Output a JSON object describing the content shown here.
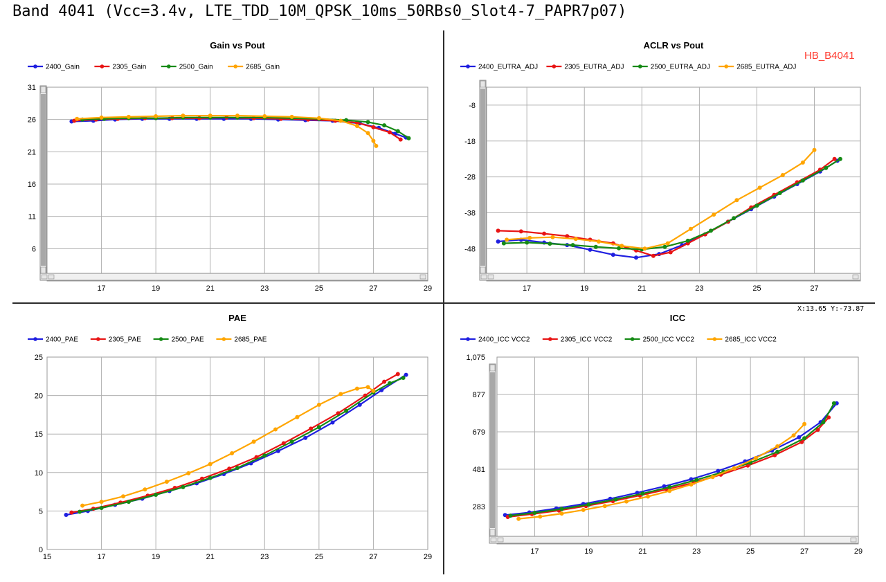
{
  "page": {
    "title": "Band 4041 (Vcc=3.4v, LTE_TDD_10M_QPSK_10ms_50RBs0_Slot4-7_PAPR7p07)",
    "annotation": "HB_B4041",
    "coord_readout": "X:13.65  Y:-73.87"
  },
  "colors": {
    "blue": "#1f1fe0",
    "red": "#e81515",
    "green": "#158a15",
    "orange": "#ffa500"
  },
  "chart_data": [
    {
      "id": "gain",
      "type": "line",
      "title": "Gain vs Pout",
      "xlim": [
        15,
        29
      ],
      "x_ticks": [
        17,
        19,
        21,
        23,
        25,
        27,
        29
      ],
      "ylim": [
        1,
        31
      ],
      "y_ticks": [
        6,
        11,
        16,
        21,
        26,
        31
      ],
      "y_tick_labels": [
        "6",
        "11",
        "16",
        "21",
        "26",
        "31"
      ],
      "x_scrollbar": true,
      "legend": [
        "2400_Gain",
        "2305_Gain",
        "2500_Gain",
        "2685_Gain"
      ],
      "series": [
        {
          "name": "2400_Gain",
          "color": "blue",
          "x": [
            15.9,
            16.7,
            17.5,
            18.5,
            19.5,
            20.5,
            21.5,
            22.5,
            23.5,
            24.5,
            25.5,
            26.5,
            27.2,
            27.8,
            28.2
          ],
          "y": [
            25.7,
            25.8,
            26.0,
            26.1,
            26.1,
            26.1,
            26.1,
            26.1,
            26.0,
            25.9,
            25.8,
            25.4,
            24.7,
            23.8,
            23.2
          ]
        },
        {
          "name": "2305_Gain",
          "color": "red",
          "x": [
            16.0,
            16.8,
            17.6,
            18.6,
            19.6,
            20.6,
            21.6,
            22.6,
            23.6,
            24.6,
            25.6,
            26.4,
            27.0,
            27.6,
            28.0
          ],
          "y": [
            25.8,
            26.0,
            26.1,
            26.2,
            26.2,
            26.2,
            26.3,
            26.2,
            26.1,
            26.0,
            25.8,
            25.5,
            24.8,
            24.0,
            22.9
          ]
        },
        {
          "name": "2500_Gain",
          "color": "green",
          "x": [
            16.3,
            17.1,
            18.0,
            19.0,
            20.0,
            21.0,
            22.0,
            23.0,
            24.0,
            25.0,
            26.0,
            26.8,
            27.4,
            27.9,
            28.3
          ],
          "y": [
            26.0,
            26.1,
            26.2,
            26.2,
            26.3,
            26.3,
            26.3,
            26.3,
            26.2,
            26.1,
            25.9,
            25.6,
            25.1,
            24.2,
            23.1
          ]
        },
        {
          "name": "2685_Gain",
          "color": "orange",
          "x": [
            16.1,
            17.0,
            18.0,
            19.0,
            20.0,
            21.0,
            22.0,
            23.0,
            24.0,
            25.0,
            25.8,
            26.4,
            26.8,
            27.0,
            27.1
          ],
          "y": [
            26.1,
            26.3,
            26.4,
            26.5,
            26.6,
            26.6,
            26.6,
            26.5,
            26.4,
            26.2,
            25.8,
            25.0,
            23.9,
            22.7,
            21.9
          ]
        }
      ]
    },
    {
      "id": "aclr",
      "type": "line",
      "title": "ACLR vs Pout",
      "xlim": [
        15.6,
        28.6
      ],
      "x_ticks": [
        17,
        19,
        21,
        23,
        25,
        27
      ],
      "ylim": [
        -57,
        -3
      ],
      "y_ticks": [
        -8,
        -18,
        -28,
        -38,
        -48
      ],
      "y_tick_labels": [
        "-8",
        "-18",
        "-28",
        "-38",
        "-48"
      ],
      "x_scrollbar": true,
      "legend": [
        "2400_EUTRA_ADJ",
        "2305_EUTRA_ADJ",
        "2500_EUTRA_ADJ",
        "2685_EUTRA_ADJ"
      ],
      "series": [
        {
          "name": "2400_EUTRA_ADJ",
          "color": "blue",
          "x": [
            16.0,
            16.8,
            17.6,
            18.4,
            19.2,
            20.0,
            20.8,
            21.6,
            22.4,
            23.2,
            24.0,
            24.8,
            25.6,
            26.4,
            27.2,
            27.8
          ],
          "y": [
            -46.0,
            -45.5,
            -46.3,
            -47.0,
            -48.3,
            -49.7,
            -50.5,
            -49.5,
            -47.0,
            -44.0,
            -40.5,
            -37.0,
            -33.5,
            -30.0,
            -26.5,
            -23.5
          ]
        },
        {
          "name": "2305_EUTRA_ADJ",
          "color": "red",
          "x": [
            16.0,
            16.8,
            17.6,
            18.4,
            19.2,
            20.0,
            20.8,
            21.4,
            22.0,
            22.6,
            23.2,
            24.0,
            24.8,
            25.6,
            26.4,
            27.2,
            27.7
          ],
          "y": [
            -43.0,
            -43.2,
            -43.8,
            -44.5,
            -45.5,
            -46.5,
            -48.5,
            -50.0,
            -49.0,
            -46.5,
            -44.0,
            -40.5,
            -36.5,
            -33.0,
            -29.5,
            -26.0,
            -23.0
          ]
        },
        {
          "name": "2500_EUTRA_ADJ",
          "color": "green",
          "x": [
            16.2,
            17.0,
            17.8,
            18.6,
            19.4,
            20.2,
            21.0,
            21.8,
            22.6,
            23.4,
            24.2,
            25.0,
            25.8,
            26.6,
            27.4,
            27.9
          ],
          "y": [
            -46.5,
            -46.3,
            -46.6,
            -47.0,
            -47.5,
            -47.9,
            -48.2,
            -47.5,
            -45.8,
            -43.0,
            -39.5,
            -36.0,
            -32.5,
            -29.0,
            -25.5,
            -23.0
          ]
        },
        {
          "name": "2685_EUTRA_ADJ",
          "color": "orange",
          "x": [
            16.3,
            17.1,
            17.9,
            18.7,
            19.5,
            20.3,
            21.1,
            21.9,
            22.7,
            23.5,
            24.3,
            25.1,
            25.9,
            26.6,
            27.0
          ],
          "y": [
            -45.5,
            -45.0,
            -44.8,
            -45.3,
            -46.0,
            -47.2,
            -48.0,
            -46.5,
            -42.5,
            -38.5,
            -34.5,
            -31.0,
            -27.5,
            -24.0,
            -20.5
          ]
        }
      ]
    },
    {
      "id": "pae",
      "type": "line",
      "title": "PAE",
      "xlim": [
        15,
        29
      ],
      "x_ticks": [
        15,
        17,
        19,
        21,
        23,
        25,
        27,
        29
      ],
      "ylim": [
        0,
        25
      ],
      "y_ticks": [
        0,
        5,
        10,
        15,
        20,
        25
      ],
      "y_tick_labels": [
        "0",
        "5",
        "10",
        "15",
        "20",
        "25"
      ],
      "x_scrollbar": false,
      "legend": [
        "2400_PAE",
        "2305_PAE",
        "2500_PAE",
        "2685_PAE"
      ],
      "series": [
        {
          "name": "2400_PAE",
          "color": "blue",
          "x": [
            15.7,
            16.5,
            17.5,
            18.5,
            19.5,
            20.5,
            21.5,
            22.5,
            23.5,
            24.5,
            25.5,
            26.5,
            27.3,
            28.2
          ],
          "y": [
            4.5,
            5.0,
            5.8,
            6.6,
            7.6,
            8.6,
            9.8,
            11.2,
            12.8,
            14.5,
            16.5,
            18.8,
            20.7,
            22.7
          ]
        },
        {
          "name": "2305_PAE",
          "color": "red",
          "x": [
            15.9,
            16.7,
            17.7,
            18.7,
            19.7,
            20.7,
            21.7,
            22.7,
            23.7,
            24.7,
            25.7,
            26.7,
            27.4,
            27.9
          ],
          "y": [
            4.8,
            5.3,
            6.1,
            7.0,
            8.0,
            9.2,
            10.5,
            12.0,
            13.8,
            15.7,
            17.7,
            20.0,
            21.8,
            22.8
          ]
        },
        {
          "name": "2500_PAE",
          "color": "green",
          "x": [
            16.2,
            17.0,
            18.0,
            19.0,
            20.0,
            21.0,
            22.0,
            23.0,
            24.0,
            25.0,
            26.0,
            27.0,
            27.6,
            28.1
          ],
          "y": [
            4.9,
            5.4,
            6.2,
            7.1,
            8.1,
            9.3,
            10.6,
            12.2,
            14.0,
            15.9,
            18.0,
            20.4,
            21.6,
            22.3
          ]
        },
        {
          "name": "2685_PAE",
          "color": "orange",
          "x": [
            16.3,
            17.0,
            17.8,
            18.6,
            19.4,
            20.2,
            21.0,
            21.8,
            22.6,
            23.4,
            24.2,
            25.0,
            25.8,
            26.4,
            26.8,
            27.0
          ],
          "y": [
            5.7,
            6.2,
            6.9,
            7.8,
            8.8,
            9.9,
            11.1,
            12.5,
            14.0,
            15.6,
            17.2,
            18.8,
            20.2,
            20.9,
            21.1,
            20.6
          ]
        }
      ]
    },
    {
      "id": "icc",
      "type": "line",
      "title": "ICC",
      "xlim": [
        15.6,
        29
      ],
      "x_ticks": [
        17,
        19,
        21,
        23,
        25,
        27,
        29
      ],
      "ylim": [
        85,
        1075
      ],
      "y_ticks": [
        283,
        481,
        679,
        877,
        1075
      ],
      "y_tick_labels": [
        "283",
        "481",
        "679",
        "877",
        "1,075"
      ],
      "x_scrollbar": true,
      "legend": [
        "2400_ICC VCC2",
        "2305_ICC VCC2",
        "2500_ICC VCC2",
        "2685_ICC VCC2"
      ],
      "series": [
        {
          "name": "2400_ICC VCC2",
          "color": "blue",
          "x": [
            15.9,
            16.8,
            17.8,
            18.8,
            19.8,
            20.8,
            21.8,
            22.8,
            23.8,
            24.8,
            25.8,
            26.8,
            27.6,
            28.2
          ],
          "y": [
            238,
            252,
            273,
            297,
            324,
            356,
            390,
            428,
            472,
            522,
            580,
            650,
            730,
            830
          ]
        },
        {
          "name": "2305_ICC VCC2",
          "color": "red",
          "x": [
            16.0,
            16.9,
            17.9,
            18.9,
            19.9,
            20.9,
            21.9,
            22.9,
            23.9,
            24.9,
            25.9,
            26.9,
            27.5,
            27.9
          ],
          "y": [
            228,
            243,
            262,
            286,
            312,
            342,
            374,
            410,
            452,
            500,
            555,
            625,
            690,
            755
          ]
        },
        {
          "name": "2500_ICC VCC2",
          "color": "green",
          "x": [
            16.1,
            17.0,
            18.0,
            19.0,
            20.0,
            21.0,
            22.0,
            23.0,
            24.0,
            25.0,
            26.0,
            27.0,
            27.7,
            28.1
          ],
          "y": [
            235,
            250,
            270,
            294,
            321,
            352,
            386,
            424,
            467,
            516,
            573,
            645,
            730,
            830
          ]
        },
        {
          "name": "2685_ICC VCC2",
          "color": "orange",
          "x": [
            16.4,
            17.2,
            18.0,
            18.8,
            19.6,
            20.4,
            21.2,
            22.0,
            22.8,
            23.6,
            24.4,
            25.2,
            26.0,
            26.6,
            27.0
          ],
          "y": [
            218,
            230,
            246,
            265,
            286,
            310,
            336,
            366,
            400,
            440,
            486,
            540,
            602,
            660,
            720
          ]
        }
      ]
    }
  ]
}
